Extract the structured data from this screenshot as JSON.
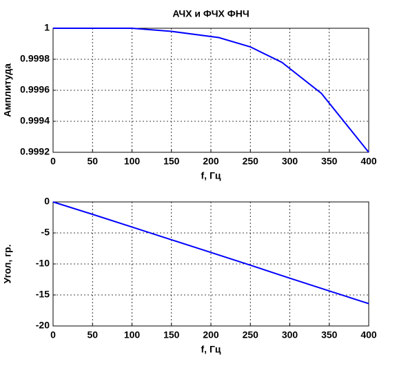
{
  "chart_data": [
    {
      "type": "line",
      "title": "АЧХ и ФЧХ ФНЧ",
      "x_label": "f, Гц",
      "y_label": "Амплитуда",
      "x": [
        0,
        50,
        100,
        150,
        210,
        250,
        290,
        340,
        400
      ],
      "series": [
        {
          "color": "#0000ff",
          "values": [
            1,
            1,
            1,
            0.99998,
            0.99994,
            0.99988,
            0.99978,
            0.99958,
            0.9992
          ]
        }
      ],
      "xlim": [
        0,
        400
      ],
      "xticks": [
        0,
        50,
        100,
        150,
        200,
        250,
        300,
        350,
        400
      ],
      "ylim": [
        0.9992,
        1
      ],
      "yticks": [
        0.9992,
        0.9994,
        0.9996,
        0.9998,
        1
      ],
      "grid": true
    },
    {
      "type": "line",
      "x_label": "f, Гц",
      "y_label": "Угол, гр.",
      "x": [
        0,
        50,
        100,
        150,
        200,
        250,
        300,
        350,
        400
      ],
      "series": [
        {
          "color": "#0000ff",
          "values": [
            0,
            -2,
            -4.05,
            -6.1,
            -8.15,
            -10.2,
            -12.3,
            -14.35,
            -16.4
          ]
        }
      ],
      "xlim": [
        0,
        400
      ],
      "xticks": [
        0,
        50,
        100,
        150,
        200,
        250,
        300,
        350,
        400
      ],
      "ylim": [
        -20,
        0
      ],
      "yticks": [
        -20,
        -15,
        -10,
        -5,
        0
      ],
      "grid": true
    }
  ]
}
